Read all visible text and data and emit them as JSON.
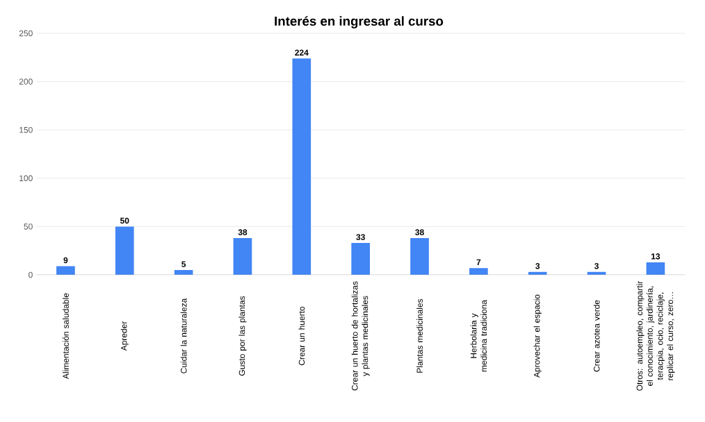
{
  "chart_data": {
    "type": "bar",
    "title": "Interés en ingresar al curso",
    "categories": [
      "Alimentación saludable",
      "Apreder",
      "Cuidar la naturaleza",
      "Gusto por las plantas",
      "Crear un huerto",
      "Crear un huerto de hortalizas y plantas medicinales",
      "Plantas medicinales",
      "Herbolaria y medicina tradiciona",
      "Aprovechar el espacio",
      "Crear azotea verde",
      "Otros: autoempleo, compartir el conocimiento, jardinería, teracpia, ocio, reciclaje, replicar el curso, zero…"
    ],
    "values": [
      9,
      50,
      5,
      38,
      224,
      33,
      38,
      7,
      3,
      3,
      13
    ],
    "color": "#4285f4",
    "ylim": [
      0,
      250
    ],
    "yticks": [
      0,
      50,
      100,
      150,
      200,
      250
    ],
    "grid": "y",
    "data_labels": true
  }
}
